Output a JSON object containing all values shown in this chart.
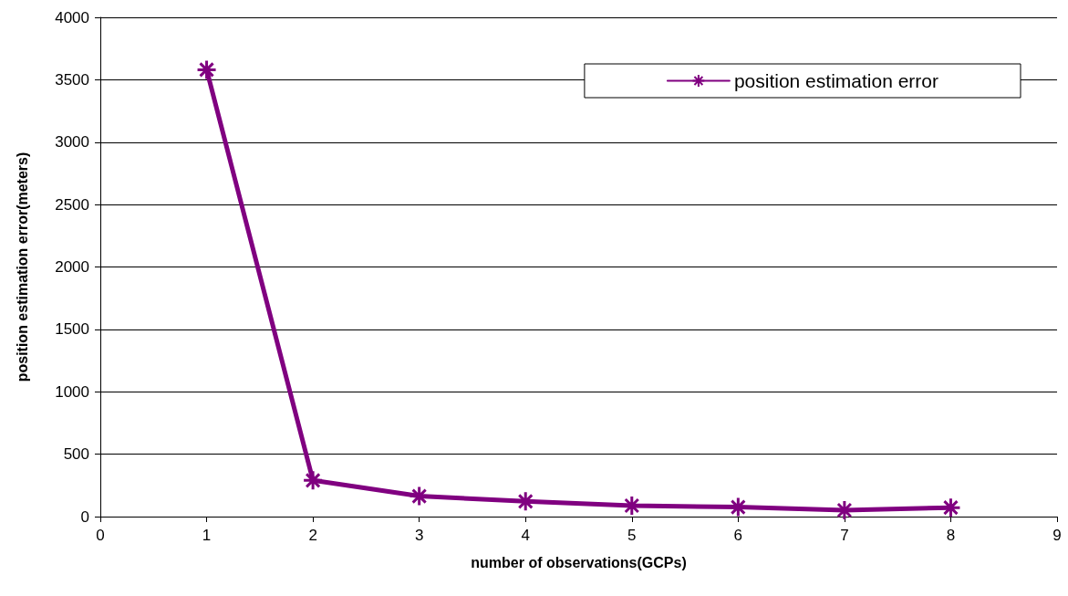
{
  "chart_data": {
    "type": "line",
    "xlabel": "number of observations(GCPs)",
    "ylabel": "position estimation error(meters)",
    "x": [
      1,
      2,
      3,
      4,
      5,
      6,
      7,
      8
    ],
    "series": [
      {
        "name": "position estimation error",
        "color": "#800080",
        "values": [
          3580,
          290,
          164,
          122,
          88,
          76,
          51,
          72
        ]
      }
    ],
    "xlim": [
      0,
      9
    ],
    "xticks": [
      0,
      1,
      2,
      3,
      4,
      5,
      6,
      7,
      8,
      9
    ],
    "ylim": [
      0,
      4000
    ],
    "yticks": [
      0,
      500,
      1000,
      1500,
      2000,
      2500,
      3000,
      3500,
      4000
    ],
    "grid": "y",
    "legend": "top right",
    "marker": "cross",
    "line_style": "solid"
  }
}
